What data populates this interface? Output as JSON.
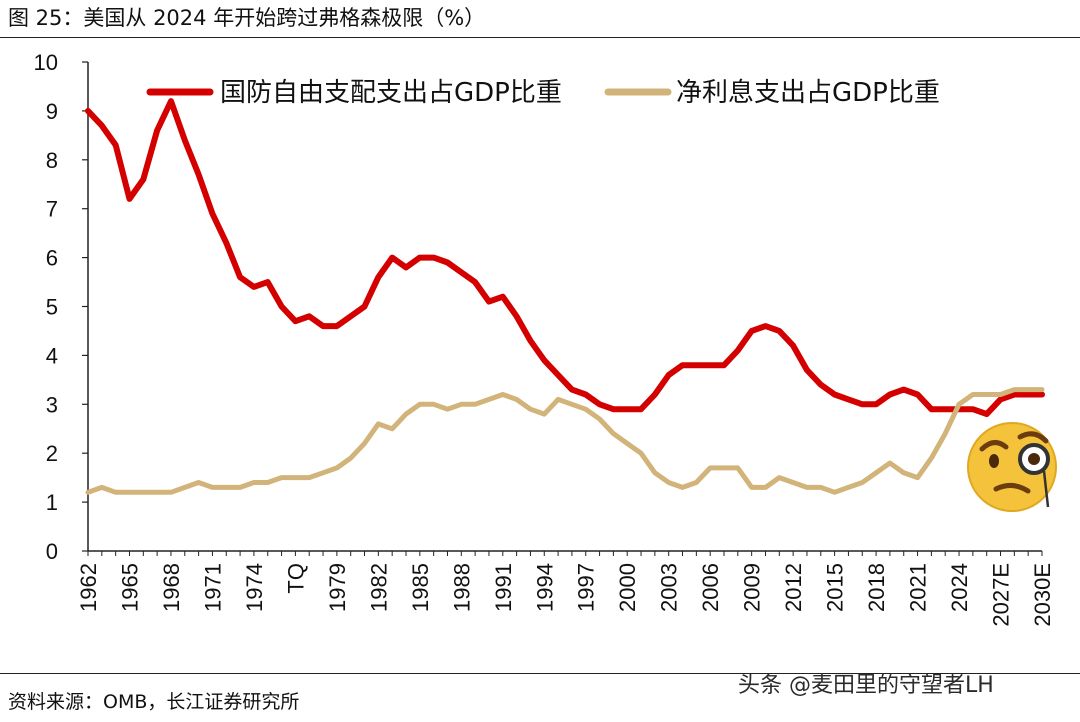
{
  "figure": {
    "title": "图 25：美国从 2024 年开始跨过弗格森极限（%）",
    "source": "资料来源：OMB，长江证券研究所",
    "watermark": "头条 @麦田里的守望者LH"
  },
  "colors": {
    "defense": "#d40000",
    "interest": "#d2b47a",
    "axis": "#222222"
  },
  "icons": {
    "emoji": "face-with-monocle-icon"
  },
  "chart_data": {
    "type": "line",
    "title": "",
    "xlabel": "",
    "ylabel": "",
    "ylim": [
      0,
      10
    ],
    "yticks": [
      "0",
      "1",
      "2",
      "3",
      "4",
      "5",
      "6",
      "7",
      "8",
      "9",
      "10"
    ],
    "x": [
      "1962",
      "1963",
      "1964",
      "1965",
      "1966",
      "1967",
      "1968",
      "1969",
      "1970",
      "1971",
      "1972",
      "1973",
      "1974",
      "1975",
      "1976",
      "TQ",
      "1977",
      "1978",
      "1979",
      "1980",
      "1981",
      "1982",
      "1983",
      "1984",
      "1985",
      "1986",
      "1987",
      "1988",
      "1989",
      "1990",
      "1991",
      "1992",
      "1993",
      "1994",
      "1995",
      "1996",
      "1997",
      "1998",
      "1999",
      "2000",
      "2001",
      "2002",
      "2003",
      "2004",
      "2005",
      "2006",
      "2007",
      "2008",
      "2009",
      "2010",
      "2011",
      "2012",
      "2013",
      "2014",
      "2015",
      "2016",
      "2017",
      "2018",
      "2019",
      "2020",
      "2021",
      "2022",
      "2023",
      "2024",
      "2025",
      "2026",
      "2027E",
      "2028E",
      "2029E",
      "2030E"
    ],
    "xtick_labels": [
      "1962",
      "1965",
      "1968",
      "1971",
      "1974",
      "TQ",
      "1979",
      "1982",
      "1985",
      "1988",
      "1991",
      "1994",
      "1997",
      "2000",
      "2003",
      "2006",
      "2009",
      "2012",
      "2015",
      "2018",
      "2021",
      "2024",
      "2027E",
      "2030E"
    ],
    "legend_position": "top",
    "series": [
      {
        "name": "国防自由支配支出占GDP比重",
        "color_key": "defense",
        "values": [
          9.0,
          8.7,
          8.3,
          7.2,
          7.6,
          8.6,
          9.2,
          8.4,
          7.7,
          6.9,
          6.3,
          5.6,
          5.4,
          5.5,
          5.0,
          4.7,
          4.8,
          4.6,
          4.6,
          4.8,
          5.0,
          5.6,
          6.0,
          5.8,
          6.0,
          6.0,
          5.9,
          5.7,
          5.5,
          5.1,
          5.2,
          4.8,
          4.3,
          3.9,
          3.6,
          3.3,
          3.2,
          3.0,
          2.9,
          2.9,
          2.9,
          3.2,
          3.6,
          3.8,
          3.8,
          3.8,
          3.8,
          4.1,
          4.5,
          4.6,
          4.5,
          4.2,
          3.7,
          3.4,
          3.2,
          3.1,
          3.0,
          3.0,
          3.2,
          3.3,
          3.2,
          2.9,
          2.9,
          2.9,
          2.9,
          2.8,
          3.1,
          3.2,
          3.2,
          3.2
        ]
      },
      {
        "name": "净利息支出占GDP比重",
        "color_key": "interest",
        "values": [
          1.2,
          1.3,
          1.2,
          1.2,
          1.2,
          1.2,
          1.2,
          1.3,
          1.4,
          1.3,
          1.3,
          1.3,
          1.4,
          1.4,
          1.5,
          1.5,
          1.5,
          1.6,
          1.7,
          1.9,
          2.2,
          2.6,
          2.5,
          2.8,
          3.0,
          3.0,
          2.9,
          3.0,
          3.0,
          3.1,
          3.2,
          3.1,
          2.9,
          2.8,
          3.1,
          3.0,
          2.9,
          2.7,
          2.4,
          2.2,
          2.0,
          1.6,
          1.4,
          1.3,
          1.4,
          1.7,
          1.7,
          1.7,
          1.3,
          1.3,
          1.5,
          1.4,
          1.3,
          1.3,
          1.2,
          1.3,
          1.4,
          1.6,
          1.8,
          1.6,
          1.5,
          1.9,
          2.4,
          3.0,
          3.2,
          3.2,
          3.2,
          3.3,
          3.3,
          3.3
        ]
      }
    ]
  }
}
